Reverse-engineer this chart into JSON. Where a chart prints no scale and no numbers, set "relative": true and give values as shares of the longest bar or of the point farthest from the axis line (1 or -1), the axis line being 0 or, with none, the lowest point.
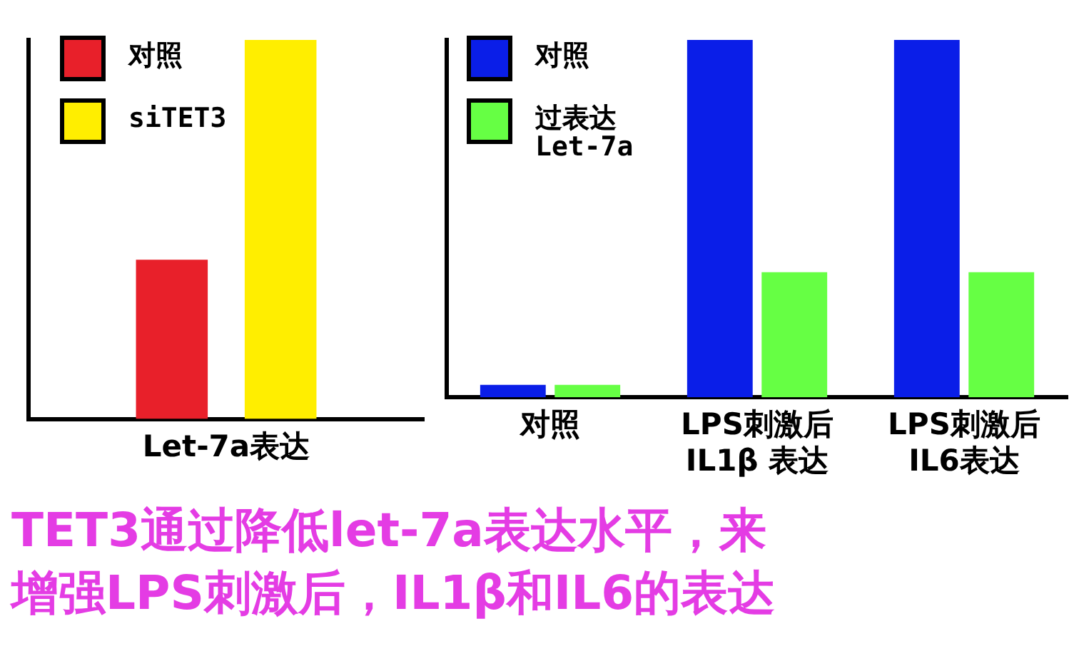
{
  "chart_data": [
    {
      "type": "bar",
      "relative": true,
      "categories": [
        "Let-7a表达"
      ],
      "legend": "top left",
      "grid": false,
      "series": [
        {
          "name": "对照",
          "color": "#e8202a",
          "values": [
            0.42
          ]
        },
        {
          "name": "siTET3",
          "color": "#ffee00",
          "values": [
            1
          ]
        }
      ],
      "annotations": [
        "TET3通过降低let-7a表达水平，来增强LPS刺激后，IL1β和IL6的表达"
      ]
    },
    {
      "type": "bar",
      "relative": true,
      "categories": [
        "对照",
        "LPS刺激后\nIL1β 表达",
        "LPS刺激后\nIL6表达"
      ],
      "legend": "top left",
      "grid": false,
      "series": [
        {
          "name": "对照",
          "color": "#0a1ee8",
          "values": [
            0.035,
            1,
            1
          ]
        },
        {
          "name": "过表达\nLet-7a",
          "color": "#66ff44",
          "values": [
            0.035,
            0.35,
            0.35
          ]
        }
      ]
    }
  ]
}
